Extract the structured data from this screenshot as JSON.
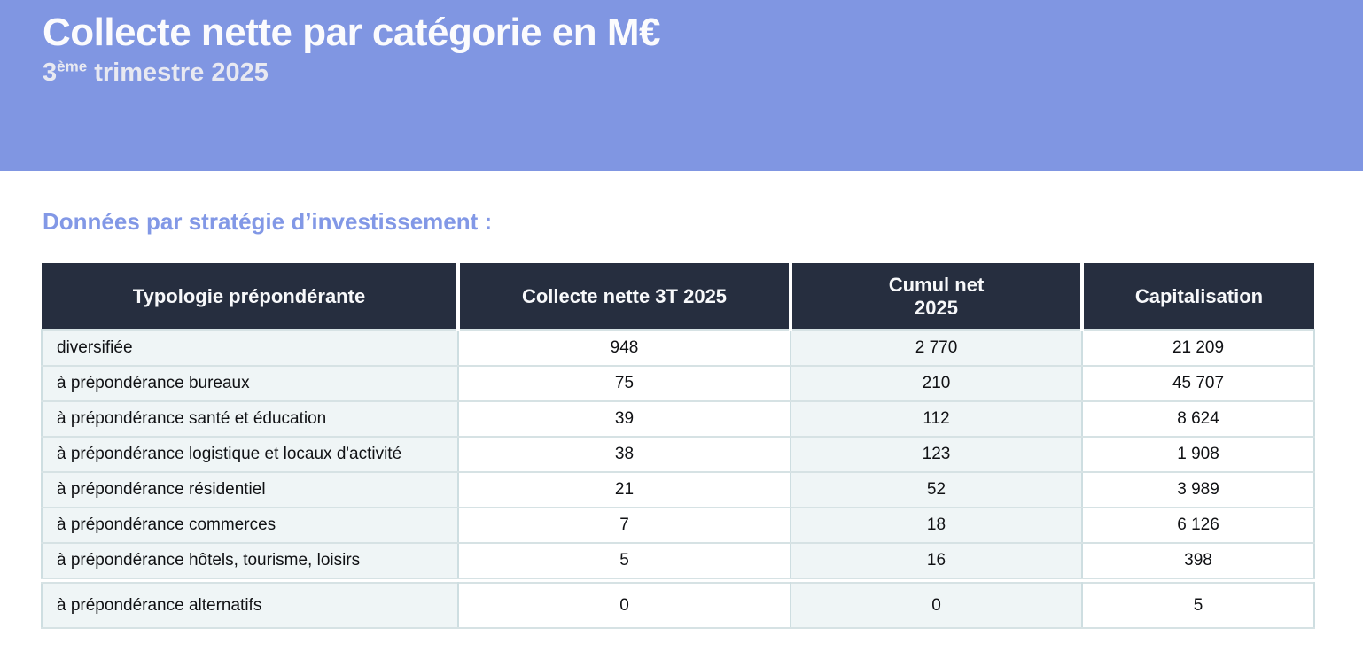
{
  "banner": {
    "title": "Collecte nette par catégorie en M€",
    "subtitle_num": "3",
    "subtitle_sup": "ème",
    "subtitle_rest": " trimestre 2025",
    "background_color": "#8096E2",
    "title_color": "#FBFBFD"
  },
  "section": {
    "heading": "Données par stratégie d’investissement :",
    "heading_color": "#8298E6"
  },
  "table": {
    "header_bg_color": "#262E3F",
    "shaded_cell_color": "#EFF5F6",
    "headers": [
      "Typologie prépondérante",
      "Collecte nette 3T 2025",
      "Cumul net\n2025",
      "Capitalisation"
    ],
    "rows": [
      {
        "typologie": "diversifiée",
        "collecte_nette_3t_2025": "948",
        "cumul_net_2025": "2 770",
        "capitalisation": "21 209"
      },
      {
        "typologie": "à prépondérance bureaux",
        "collecte_nette_3t_2025": "75",
        "cumul_net_2025": "210",
        "capitalisation": "45 707"
      },
      {
        "typologie": "à prépondérance santé et éducation",
        "collecte_nette_3t_2025": "39",
        "cumul_net_2025": "112",
        "capitalisation": "8 624"
      },
      {
        "typologie": "à prépondérance logistique et locaux d'activité",
        "collecte_nette_3t_2025": "38",
        "cumul_net_2025": "123",
        "capitalisation": "1 908"
      },
      {
        "typologie": "à prépondérance résidentiel",
        "collecte_nette_3t_2025": "21",
        "cumul_net_2025": "52",
        "capitalisation": "3 989"
      },
      {
        "typologie": "à prépondérance commerces",
        "collecte_nette_3t_2025": "7",
        "cumul_net_2025": "18",
        "capitalisation": "6 126"
      },
      {
        "typologie": "à prépondérance hôtels, tourisme, loisirs",
        "collecte_nette_3t_2025": "5",
        "cumul_net_2025": "16",
        "capitalisation": "398"
      },
      {
        "typologie": "à prépondérance alternatifs",
        "collecte_nette_3t_2025": "0",
        "cumul_net_2025": "0",
        "capitalisation": "5"
      }
    ]
  }
}
